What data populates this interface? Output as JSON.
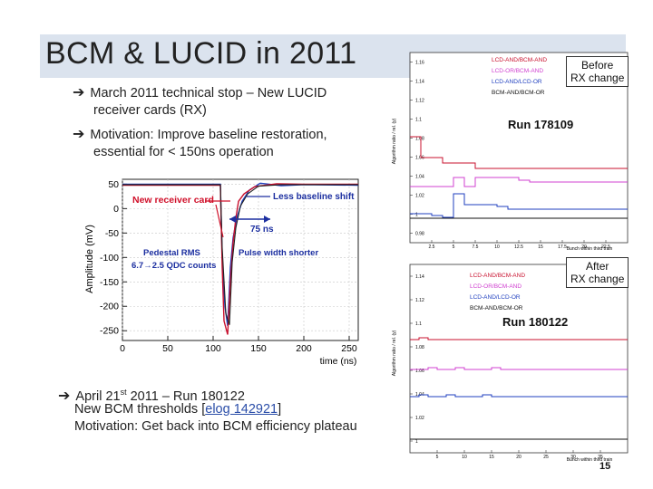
{
  "slide": {
    "title": "BCM & LUCID in 2011",
    "page_number": "15"
  },
  "bullets": {
    "b1_line1": "March 2011 technical stop – New LUCID",
    "b1_line2": "receiver cards (RX)",
    "b2_line1": "Motivation: Improve baseline restoration,",
    "b2_line2": "essential for < 150ns operation",
    "b3_prefix": "April 21",
    "b3_sup": "st",
    "b3_suffix": " 2011 – Run 180122",
    "b3_line2_text": "New BCM thresholds [",
    "b3_line2_link": "elog 142921",
    "b3_line2_close": "]",
    "b3_line3": "Motivation: Get back into BCM efficiency plateau"
  },
  "pulse_plot": {
    "ylabel": "Amplitude (mV)",
    "xlabel": "time (ns)",
    "y_ticks": [
      "50",
      "0",
      "-50",
      "-100",
      "-150",
      "-200",
      "-250"
    ],
    "y_tick_values": [
      50,
      0,
      -50,
      -100,
      -150,
      -200,
      -250
    ],
    "x_ticks": [
      "0",
      "50",
      "100",
      "150",
      "200",
      "250"
    ],
    "x_tick_values": [
      0,
      50,
      100,
      150,
      200,
      250
    ],
    "ann_new_card": "New receiver card",
    "ann_less_shift": "Less baseline shift",
    "ann_75ns": "75 ns",
    "ann_pedestal_1": "Pedestal RMS",
    "ann_pedestal_2": "6.7→2.5 QDC counts",
    "ann_pulse_width": "Pulse width shorter",
    "colors": {
      "new": "#c8102e",
      "old": "#1f3fbf",
      "ann_red": "#d0102a",
      "ann_blue": "#1c2fa0"
    }
  },
  "ratio_top": {
    "label_line1": "Before",
    "label_line2": "RX change",
    "run": "Run 178109",
    "ylabel": "Algorithm ratio / rel. (y)",
    "xlabel": "Bunch within third train",
    "legend": [
      "LCD-AND/BCM-AND",
      "LCD-OR/BCM-AND",
      "LCD-AND/LCD-OR",
      "BCM-AND/BCM-OR"
    ],
    "y_ticks": [
      "1.16",
      "1.14",
      "1.12",
      "1.1",
      "1.08",
      "1.06",
      "1.04",
      "1.02",
      "1",
      "0.98"
    ],
    "x_ticks": [
      "2.5",
      "5",
      "7.5",
      "10",
      "12.5",
      "15",
      "17.5",
      "20",
      "22.5"
    ]
  },
  "ratio_bottom": {
    "label_line1": "After",
    "label_line2": "RX change",
    "run": "Run 180122",
    "ylabel": "Algorithm ratio / rel. (y)",
    "xlabel": "Bunch within third train",
    "legend": [
      "LCD-AND/BCM-AND",
      "LCD-OR/BCM-AND",
      "LCD-AND/LCD-OR",
      "BCM-AND/BCM-OR"
    ],
    "y_ticks": [
      "1.14",
      "1.12",
      "1.1",
      "1.08",
      "1.06",
      "1.04",
      "1.02",
      "1"
    ],
    "x_ticks": [
      "5",
      "10",
      "15",
      "20",
      "25",
      "30",
      "35"
    ]
  },
  "series_colors": [
    "#c8102e",
    "#d040d0",
    "#1f3fbf",
    "#111111"
  ]
}
